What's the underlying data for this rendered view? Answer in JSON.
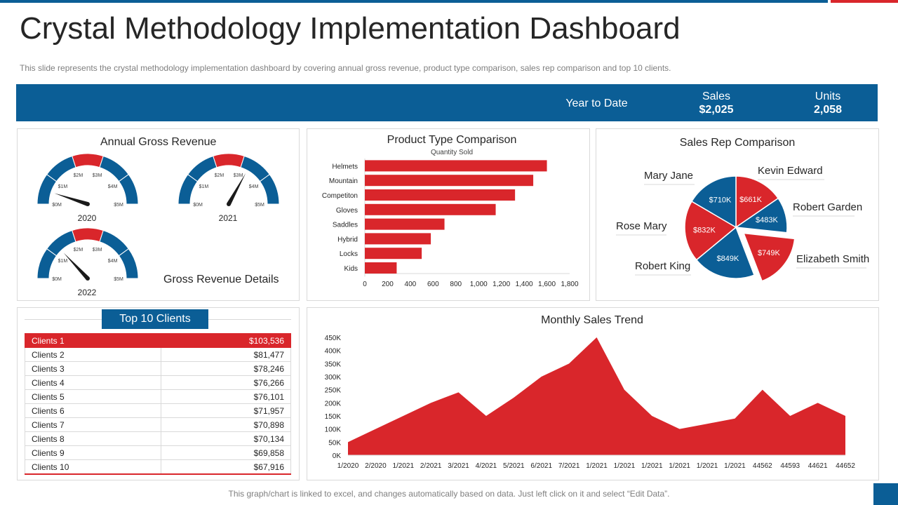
{
  "header": {
    "title": "Crystal Methodology Implementation Dashboard",
    "subtitle": "This slide represents the crystal methodology implementation dashboard by covering annual gross revenue, product type comparison, sales rep comparison and top 10 clients."
  },
  "banner": {
    "ytd_label": "Year to Date",
    "sales_label": "Sales",
    "sales_value": "$2,025",
    "units_label": "Units",
    "units_value": "2,058"
  },
  "colors": {
    "blue": "#0b5e96",
    "red": "#d9262b"
  },
  "gauges": {
    "title": "Annual Gross Revenue",
    "details_label": "Gross Revenue Details",
    "tick_labels": [
      "$0M",
      "$1M",
      "$2M",
      "$3M",
      "$4M",
      "$5M"
    ],
    "items": [
      {
        "year": "2020",
        "value_m": 0.5
      },
      {
        "year": "2021",
        "value_m": 3.3
      },
      {
        "year": "2022",
        "value_m": 1.3
      }
    ]
  },
  "product": {
    "title": "Product Type Comparison"
  },
  "sales_rep": {
    "title": "Sales Rep Comparison"
  },
  "clients": {
    "title": "Top 10 Clients",
    "rows": [
      {
        "name": "Clients 1",
        "value": "$103,536"
      },
      {
        "name": "Clients 2",
        "value": "$81,477"
      },
      {
        "name": "Clients 3",
        "value": "$78,246"
      },
      {
        "name": "Clients 4",
        "value": "$76,266"
      },
      {
        "name": "Clients 5",
        "value": "$76,101"
      },
      {
        "name": "Clients 6",
        "value": "$71,957"
      },
      {
        "name": "Clients 7",
        "value": "$70,898"
      },
      {
        "name": "Clients 8",
        "value": "$70,134"
      },
      {
        "name": "Clients 9",
        "value": "$69,858"
      },
      {
        "name": "Clients 10",
        "value": "$67,916"
      }
    ]
  },
  "trend": {
    "title": "Monthly Sales Trend"
  },
  "footer": {
    "note": "This graph/chart is linked to excel, and changes automatically based on data. Just left click on it and select “Edit Data”."
  },
  "chart_data": [
    {
      "type": "bar",
      "orientation": "horizontal",
      "title": "Product Type Comparison",
      "subtitle": "Quantity Sold",
      "categories": [
        "Helmets",
        "Mountain",
        "Competiton",
        "Gloves",
        "Saddles",
        "Hybrid",
        "Locks",
        "Kids"
      ],
      "values": [
        1600,
        1480,
        1320,
        1150,
        700,
        580,
        500,
        280
      ],
      "xlim": [
        0,
        1800
      ],
      "xticks": [
        "0",
        "200",
        "400",
        "600",
        "800",
        "1,000",
        "1,200",
        "1,400",
        "1,600",
        "1,800"
      ]
    },
    {
      "type": "pie",
      "title": "Sales Rep Comparison",
      "slices": [
        {
          "name": "Kevin Edward",
          "label": "$661K",
          "value": 661,
          "color": "#d9262b",
          "exploded": false
        },
        {
          "name": "Robert Garden",
          "label": "$483K",
          "value": 483,
          "color": "#0b5e96",
          "exploded": false
        },
        {
          "name": "Elizabeth Smith",
          "label": "$749K",
          "value": 749,
          "color": "#d9262b",
          "exploded": true
        },
        {
          "name": "Robert King",
          "label": "$849K",
          "value": 849,
          "color": "#0b5e96",
          "exploded": false
        },
        {
          "name": "Rose Mary",
          "label": "$832K",
          "value": 832,
          "color": "#d9262b",
          "exploded": false
        },
        {
          "name": "Mary Jane",
          "label": "$710K",
          "value": 710,
          "color": "#0b5e96",
          "exploded": false
        }
      ]
    },
    {
      "type": "area",
      "title": "Monthly Sales Trend",
      "categories": [
        "1/2020",
        "2/2020",
        "1/2021",
        "2/2021",
        "3/2021",
        "4/2021",
        "5/2021",
        "6/2021",
        "7/2021",
        "1/2021",
        "1/2021",
        "1/2021",
        "1/2021",
        "1/2021",
        "1/2021",
        "44562",
        "44593",
        "44621",
        "44652"
      ],
      "values": [
        50000,
        100000,
        150000,
        200000,
        240000,
        150000,
        220000,
        300000,
        350000,
        450000,
        250000,
        150000,
        100000,
        120000,
        140000,
        250000,
        150000,
        200000,
        150000
      ],
      "ylim": [
        0,
        450000
      ],
      "yticks": [
        "0K",
        "50K",
        "100K",
        "150K",
        "200K",
        "250K",
        "300K",
        "350K",
        "400K",
        "450K"
      ],
      "color": "#d9262b"
    }
  ]
}
